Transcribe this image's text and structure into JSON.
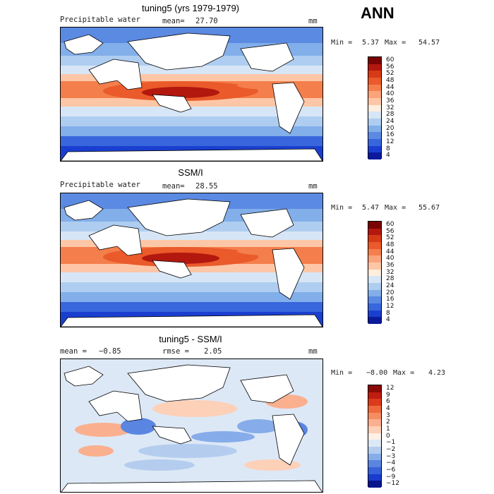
{
  "season": "ANN",
  "chart_data": [
    {
      "type": "heatmap",
      "title": "tuning5 (yrs 1979-1979)",
      "variable": "Precipitable water",
      "stat_label": "mean=",
      "stat_value": "27.70",
      "units": "mm",
      "min_label": "Min =",
      "min_value": "5.37",
      "max_label": "Max =",
      "max_value": "54.57",
      "levels": [
        "60",
        "56",
        "52",
        "48",
        "44",
        "40",
        "36",
        "32",
        "28",
        "24",
        "20",
        "16",
        "12",
        "8",
        "4"
      ],
      "colors": [
        "#7a0403",
        "#b2180e",
        "#d73a17",
        "#ea5a2a",
        "#f47f4c",
        "#fba47c",
        "#fdc7a7",
        "#fdeedd",
        "#d7e6f6",
        "#aecdf0",
        "#82aeea",
        "#5b8ae3",
        "#3866dc",
        "#1a3fd0",
        "#0b1a9c"
      ]
    },
    {
      "type": "heatmap",
      "title": "SSM/I",
      "variable": "Precipitable water",
      "stat_label": "mean=",
      "stat_value": "28.55",
      "units": "mm",
      "min_label": "Min =",
      "min_value": "5.47",
      "max_label": "Max =",
      "max_value": "55.67",
      "levels": [
        "60",
        "56",
        "52",
        "48",
        "44",
        "40",
        "36",
        "32",
        "28",
        "24",
        "20",
        "16",
        "12",
        "8",
        "4"
      ],
      "colors": [
        "#7a0403",
        "#b2180e",
        "#d73a17",
        "#ea5a2a",
        "#f47f4c",
        "#fba47c",
        "#fdc7a7",
        "#fdeedd",
        "#d7e6f6",
        "#aecdf0",
        "#82aeea",
        "#5b8ae3",
        "#3866dc",
        "#1a3fd0",
        "#0b1a9c"
      ]
    },
    {
      "type": "heatmap",
      "title": "tuning5 - SSM/I",
      "variable": "",
      "stat_label": "mean =",
      "stat_value": "−0.85",
      "stat2_label": "rmse =",
      "stat2_value": "2.05",
      "units": "mm",
      "min_label": "Min =",
      "min_value": "−8.00",
      "max_label": "Max =",
      "max_value": "4.23",
      "levels": [
        "12",
        "9",
        "6",
        "4",
        "3",
        "2",
        "1",
        "0",
        "−1",
        "−2",
        "−3",
        "−4",
        "−6",
        "−9",
        "−12"
      ],
      "colors": [
        "#8c0a05",
        "#bf1d10",
        "#db3b1b",
        "#ee6a3c",
        "#f58d62",
        "#fab08e",
        "#fdd0b8",
        "#fdf1e8",
        "#dde8f6",
        "#b4cdef",
        "#86acea",
        "#5a86e2",
        "#3862d9",
        "#1a3ccd",
        "#07148e"
      ]
    }
  ]
}
